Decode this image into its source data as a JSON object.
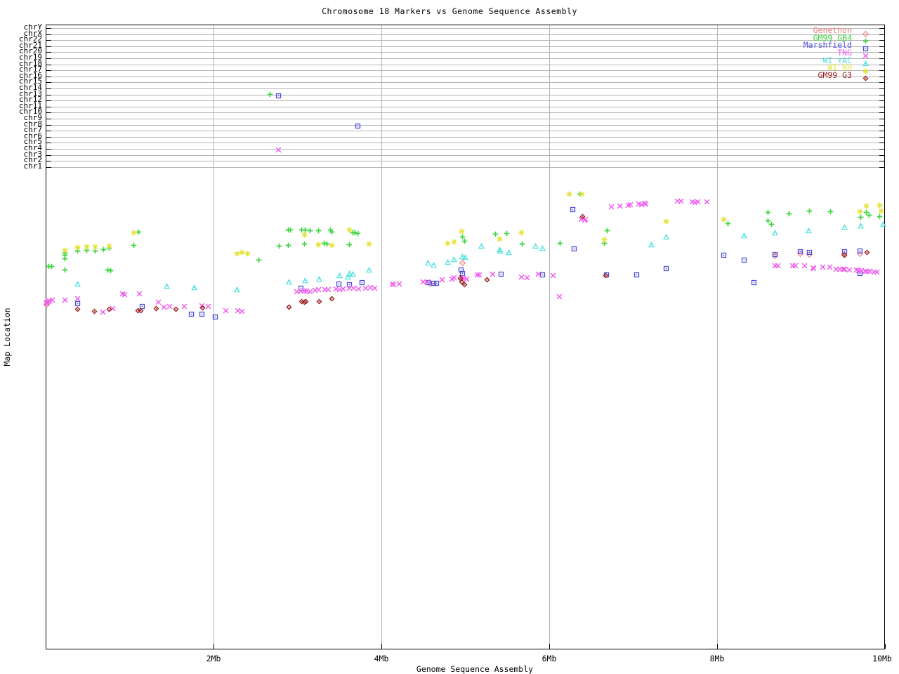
{
  "title": "Chromosome 18 Markers vs Genome Sequence Assembly",
  "x_axis": {
    "label": "Genome Sequence Assembly",
    "tick_labels": [
      "2Mb",
      "4Mb",
      "6Mb",
      "8Mb",
      "10Mb"
    ],
    "tick_values_mb": [
      2,
      4,
      6,
      8,
      10
    ],
    "range_mb": [
      0,
      10
    ]
  },
  "y_axis": {
    "label": "Map Location",
    "chromosome_rows": [
      "chrY",
      "chrX",
      "chr22",
      "chr21",
      "chr20",
      "chr19",
      "chr18",
      "chr17",
      "chr16",
      "chr15",
      "chr14",
      "chr13",
      "chr12",
      "chr11",
      "chr10",
      "chr9",
      "chr8",
      "chr7",
      "chr6",
      "chr5",
      "chr4",
      "chr3",
      "chr2",
      "chr1"
    ]
  },
  "chart_data": {
    "type": "scatter",
    "title": "Chromosome 18 Markers vs Genome Sequence Assembly",
    "xlabel": "Genome Sequence Assembly",
    "ylabel": "Map Location",
    "xlim_mb": [
      0,
      10
    ],
    "grid": true,
    "legend_position": "top-right",
    "note": "x values in Mb along assembly; y values are unlabeled map-location axis positions (screen px, 35=top of plot, 925=bottom)",
    "series": [
      {
        "name": "Genethon",
        "color": "#f08080",
        "symbol": "diamond-dot",
        "points": [
          [
            0.01,
            427
          ],
          [
            4.58,
            398
          ],
          [
            4.97,
            368
          ],
          [
            8.69,
            358
          ],
          [
            8.99,
            355
          ],
          [
            9.1,
            356
          ],
          [
            9.51,
            356
          ],
          [
            9.7,
            355
          ]
        ]
      },
      {
        "name": "GM99 GB4",
        "color": "#3fd43f",
        "symbol": "plus",
        "points": [
          [
            2.67,
            128
          ],
          [
            0.04,
            373
          ],
          [
            0.07,
            373
          ],
          [
            0.23,
            354
          ],
          [
            0.23,
            357
          ],
          [
            0.23,
            362
          ],
          [
            0.23,
            378
          ],
          [
            0.38,
            351
          ],
          [
            0.49,
            350
          ],
          [
            0.59,
            351
          ],
          [
            0.69,
            349
          ],
          [
            0.74,
            378
          ],
          [
            0.77,
            379
          ],
          [
            0.76,
            347
          ],
          [
            1.05,
            343
          ],
          [
            1.11,
            324
          ],
          [
            2.54,
            364
          ],
          [
            2.78,
            344
          ],
          [
            2.89,
            343
          ],
          [
            2.89,
            321
          ],
          [
            2.92,
            321
          ],
          [
            3.05,
            321
          ],
          [
            3.09,
            321
          ],
          [
            3.15,
            322
          ],
          [
            3.25,
            322
          ],
          [
            3.39,
            321
          ],
          [
            3.41,
            324
          ],
          [
            3.66,
            325
          ],
          [
            3.69,
            325
          ],
          [
            3.72,
            326
          ],
          [
            3.08,
            341
          ],
          [
            3.32,
            340
          ],
          [
            3.35,
            341
          ],
          [
            3.62,
            342
          ],
          [
            4.97,
            331
          ],
          [
            4.99,
            337
          ],
          [
            5.36,
            327
          ],
          [
            5.49,
            326
          ],
          [
            5.68,
            341
          ],
          [
            6.13,
            340
          ],
          [
            6.36,
            270
          ],
          [
            6.66,
            340
          ],
          [
            6.69,
            322
          ],
          [
            8.13,
            312
          ],
          [
            8.61,
            296
          ],
          [
            8.61,
            308
          ],
          [
            8.65,
            313
          ],
          [
            8.86,
            298
          ],
          [
            9.1,
            294
          ],
          [
            9.35,
            295
          ],
          [
            9.71,
            303
          ],
          [
            9.78,
            296
          ],
          [
            9.81,
            300
          ],
          [
            9.94,
            302
          ]
        ]
      },
      {
        "name": "Marshfield",
        "color": "#4d4dde",
        "symbol": "square-dot",
        "points": [
          [
            2.77,
            130
          ],
          [
            3.72,
            173
          ],
          [
            0.38,
            426
          ],
          [
            1.15,
            430
          ],
          [
            1.74,
            441
          ],
          [
            1.86,
            441
          ],
          [
            2.02,
            445
          ],
          [
            3.04,
            404
          ],
          [
            3.49,
            398
          ],
          [
            3.62,
            399
          ],
          [
            3.77,
            396
          ],
          [
            4.56,
            396
          ],
          [
            4.62,
            397
          ],
          [
            4.66,
            397
          ],
          [
            4.95,
            378
          ],
          [
            4.97,
            383
          ],
          [
            5.43,
            384
          ],
          [
            5.92,
            385
          ],
          [
            6.28,
            292
          ],
          [
            6.3,
            348
          ],
          [
            6.68,
            385
          ],
          [
            7.04,
            385
          ],
          [
            7.39,
            376
          ],
          [
            8.08,
            357
          ],
          [
            8.32,
            364
          ],
          [
            8.44,
            396
          ],
          [
            8.69,
            356
          ],
          [
            8.99,
            352
          ],
          [
            9.1,
            353
          ],
          [
            9.52,
            352
          ],
          [
            9.7,
            351
          ],
          [
            9.7,
            383
          ]
        ]
      },
      {
        "name": "TNG",
        "color": "#ee5cee",
        "symbol": "cross",
        "points": [
          [
            2.77,
            207
          ],
          [
            0.01,
            426
          ],
          [
            0.01,
            424
          ],
          [
            0.03,
            423
          ],
          [
            0.05,
            422
          ],
          [
            0.08,
            421
          ],
          [
            0.23,
            421
          ],
          [
            0.38,
            419
          ],
          [
            0.68,
            438
          ],
          [
            0.8,
            433
          ],
          [
            0.92,
            412
          ],
          [
            0.94,
            413
          ],
          [
            1.12,
            412
          ],
          [
            1.34,
            424
          ],
          [
            1.41,
            431
          ],
          [
            1.48,
            430
          ],
          [
            1.65,
            430
          ],
          [
            1.86,
            429
          ],
          [
            1.94,
            430
          ],
          [
            2.15,
            436
          ],
          [
            2.29,
            436
          ],
          [
            2.34,
            437
          ],
          [
            2.99,
            409
          ],
          [
            3.04,
            408
          ],
          [
            3.08,
            408
          ],
          [
            3.11,
            408
          ],
          [
            3.15,
            409
          ],
          [
            3.21,
            407
          ],
          [
            3.25,
            406
          ],
          [
            3.33,
            406
          ],
          [
            3.37,
            406
          ],
          [
            3.46,
            405
          ],
          [
            3.5,
            406
          ],
          [
            3.54,
            405
          ],
          [
            3.62,
            404
          ],
          [
            3.67,
            404
          ],
          [
            3.73,
            405
          ],
          [
            3.81,
            404
          ],
          [
            3.87,
            403
          ],
          [
            3.92,
            404
          ],
          [
            4.13,
            398
          ],
          [
            4.15,
            399
          ],
          [
            4.21,
            398
          ],
          [
            4.5,
            395
          ],
          [
            4.55,
            395
          ],
          [
            4.72,
            392
          ],
          [
            4.84,
            391
          ],
          [
            4.87,
            389
          ],
          [
            4.95,
            389
          ],
          [
            4.98,
            390
          ],
          [
            5.02,
            391
          ],
          [
            5.14,
            385
          ],
          [
            5.17,
            385
          ],
          [
            5.33,
            384
          ],
          [
            5.67,
            388
          ],
          [
            5.74,
            389
          ],
          [
            5.87,
            384
          ],
          [
            6.05,
            386
          ],
          [
            6.12,
            416
          ],
          [
            6.38,
            306
          ],
          [
            6.42,
            307
          ],
          [
            6.43,
            306
          ],
          [
            6.74,
            288
          ],
          [
            6.84,
            287
          ],
          [
            6.94,
            286
          ],
          [
            6.97,
            285
          ],
          [
            7.07,
            284
          ],
          [
            7.1,
            285
          ],
          [
            7.13,
            283
          ],
          [
            7.15,
            284
          ],
          [
            7.53,
            280
          ],
          [
            7.57,
            280
          ],
          [
            7.7,
            281
          ],
          [
            7.74,
            282
          ],
          [
            7.77,
            281
          ],
          [
            7.88,
            281
          ],
          [
            8.69,
            372
          ],
          [
            8.72,
            372
          ],
          [
            8.9,
            372
          ],
          [
            8.93,
            372
          ],
          [
            9.04,
            372
          ],
          [
            9.14,
            375
          ],
          [
            9.15,
            376
          ],
          [
            9.26,
            374
          ],
          [
            9.34,
            374
          ],
          [
            9.42,
            377
          ],
          [
            9.46,
            377
          ],
          [
            9.5,
            377
          ],
          [
            9.52,
            377
          ],
          [
            9.58,
            378
          ],
          [
            9.66,
            378
          ],
          [
            9.69,
            379
          ],
          [
            9.72,
            379
          ],
          [
            9.76,
            380
          ],
          [
            9.79,
            380
          ],
          [
            9.82,
            380
          ],
          [
            9.87,
            381
          ],
          [
            9.9,
            381
          ]
        ]
      },
      {
        "name": "WI YAC",
        "color": "#4de0e0",
        "symbol": "triangle-dot",
        "points": [
          [
            0.38,
            398
          ],
          [
            1.44,
            401
          ],
          [
            1.77,
            403
          ],
          [
            2.28,
            406
          ],
          [
            2.9,
            395
          ],
          [
            3.09,
            393
          ],
          [
            3.26,
            391
          ],
          [
            3.5,
            386
          ],
          [
            3.6,
            388
          ],
          [
            3.62,
            383
          ],
          [
            3.66,
            384
          ],
          [
            3.85,
            378
          ],
          [
            4.56,
            368
          ],
          [
            4.62,
            371
          ],
          [
            4.79,
            367
          ],
          [
            4.87,
            363
          ],
          [
            4.97,
            359
          ],
          [
            5.0,
            360
          ],
          [
            5.19,
            344
          ],
          [
            5.41,
            349
          ],
          [
            5.42,
            351
          ],
          [
            5.52,
            353
          ],
          [
            5.84,
            344
          ],
          [
            5.92,
            347
          ],
          [
            7.22,
            342
          ],
          [
            7.39,
            331
          ],
          [
            8.32,
            329
          ],
          [
            8.69,
            325
          ],
          [
            9.09,
            322
          ],
          [
            9.52,
            317
          ],
          [
            9.71,
            315
          ],
          [
            9.98,
            313
          ]
        ]
      },
      {
        "name": "WI RH",
        "color": "#e3e33a",
        "symbol": "asterisk",
        "points": [
          [
            0.23,
            350
          ],
          [
            0.38,
            346
          ],
          [
            0.49,
            345
          ],
          [
            0.59,
            345
          ],
          [
            0.76,
            344
          ],
          [
            1.05,
            325
          ],
          [
            2.28,
            355
          ],
          [
            2.34,
            353
          ],
          [
            2.41,
            355
          ],
          [
            3.08,
            328
          ],
          [
            3.25,
            342
          ],
          [
            3.41,
            343
          ],
          [
            3.62,
            321
          ],
          [
            3.85,
            341
          ],
          [
            4.79,
            340
          ],
          [
            4.87,
            338
          ],
          [
            4.96,
            323
          ],
          [
            5.41,
            334
          ],
          [
            5.67,
            325
          ],
          [
            6.24,
            270
          ],
          [
            6.39,
            270
          ],
          [
            6.66,
            335
          ],
          [
            7.39,
            309
          ],
          [
            8.08,
            306
          ],
          [
            9.7,
            295
          ],
          [
            9.78,
            287
          ],
          [
            9.94,
            286
          ],
          [
            9.95,
            294
          ]
        ]
      },
      {
        "name": "GM99 G3",
        "color": "#9b1c1c",
        "symbol": "diamond-small-dot",
        "points": [
          [
            0.38,
            434
          ],
          [
            0.58,
            437
          ],
          [
            0.76,
            434
          ],
          [
            1.1,
            436
          ],
          [
            1.13,
            436
          ],
          [
            1.32,
            433
          ],
          [
            1.55,
            434
          ],
          [
            1.87,
            432
          ],
          [
            2.9,
            431
          ],
          [
            3.05,
            423
          ],
          [
            3.08,
            424
          ],
          [
            3.1,
            423
          ],
          [
            3.26,
            423
          ],
          [
            3.41,
            419
          ],
          [
            4.94,
            390
          ],
          [
            4.96,
            395
          ],
          [
            4.99,
            399
          ],
          [
            5.26,
            392
          ],
          [
            6.4,
            302
          ],
          [
            6.67,
            386
          ],
          [
            9.52,
            357
          ],
          [
            9.79,
            353
          ]
        ]
      }
    ]
  }
}
